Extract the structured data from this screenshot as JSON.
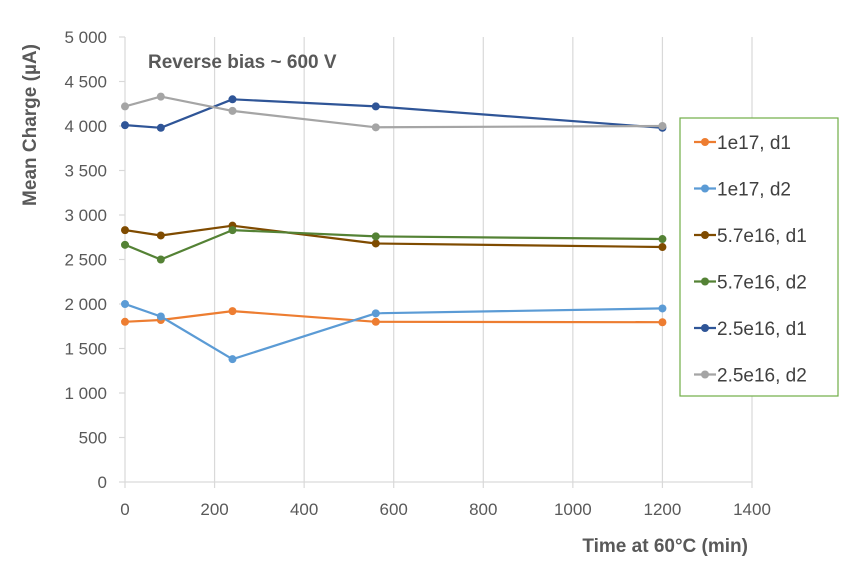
{
  "chart_data": {
    "type": "line",
    "annotation": "Reverse bias ~ 600 V",
    "xlabel": "Time at 60°C (min)",
    "ylabel": "Mean Charge (µA)",
    "xlim": [
      0,
      1400
    ],
    "ylim": [
      0,
      5000
    ],
    "x_ticks": [
      0,
      200,
      400,
      600,
      800,
      1000,
      1200,
      1400
    ],
    "x_tick_labels": [
      "0",
      "200",
      "400",
      "600",
      "800",
      "1000",
      "1200",
      "1400"
    ],
    "y_ticks": [
      0,
      500,
      1000,
      1500,
      2000,
      2500,
      3000,
      3500,
      4000,
      4500,
      5000
    ],
    "y_tick_labels": [
      "0",
      "500",
      "1 000",
      "1 500",
      "2 000",
      "2 500",
      "3 000",
      "3 500",
      "4 000",
      "4 500",
      "5 000"
    ],
    "grid": "vertical",
    "legend_position": "right",
    "x": [
      0,
      80,
      240,
      560,
      1200
    ],
    "series": [
      {
        "name": "1e17, d1",
        "color": "#ED7D31",
        "values": [
          1800,
          1820,
          1920,
          1800,
          1795
        ]
      },
      {
        "name": "1e17, d2",
        "color": "#5B9BD5",
        "values": [
          2000,
          1860,
          1380,
          1895,
          1950
        ]
      },
      {
        "name": "5.7e16, d1",
        "color": "#7F4B00",
        "values": [
          2830,
          2770,
          2880,
          2680,
          2640
        ]
      },
      {
        "name": "5.7e16, d2",
        "color": "#548235",
        "values": [
          2665,
          2500,
          2830,
          2760,
          2730
        ]
      },
      {
        "name": "2.5e16, d1",
        "color": "#2F5597",
        "values": [
          4010,
          3980,
          4300,
          4220,
          3980
        ]
      },
      {
        "name": "2.5e16, d2",
        "color": "#A5A5A5",
        "values": [
          4220,
          4330,
          4170,
          3985,
          4000
        ]
      }
    ],
    "legend_border_color": "#70AD47"
  }
}
